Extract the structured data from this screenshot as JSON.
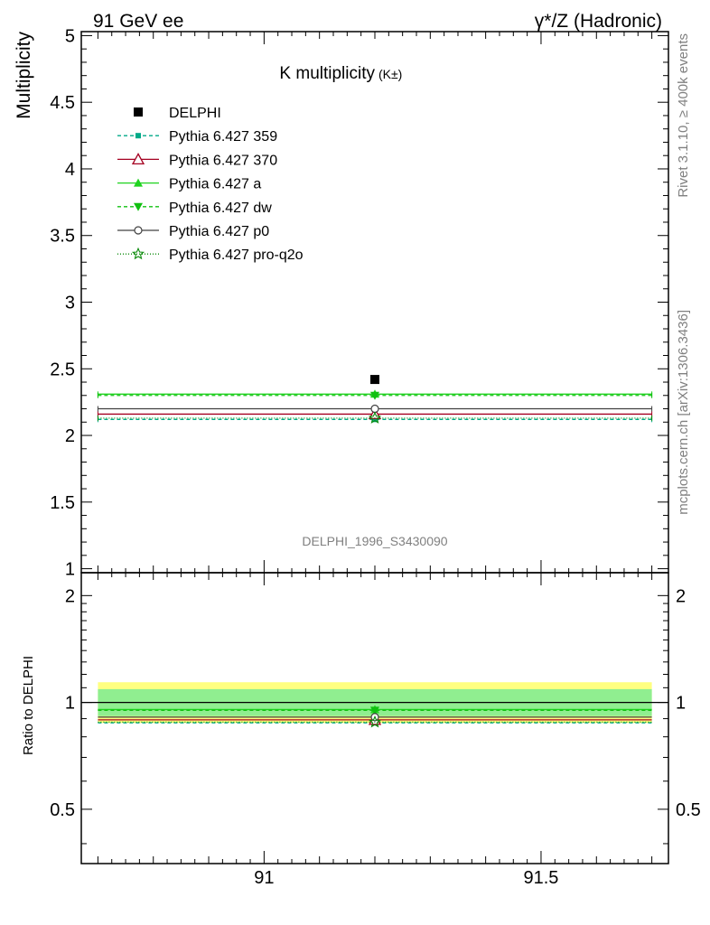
{
  "header": {
    "left": "91 GeV ee",
    "right": "γ*/Z (Hadronic)"
  },
  "side_text": {
    "rivet": "Rivet 3.1.10, ≥ 400k events",
    "mcplots": "mcplots.cern.ch [arXiv:1306.3436]"
  },
  "watermark": "DELPHI_1996_S3430090",
  "chart_data": [
    {
      "type": "line",
      "panel": "main",
      "title_main": "K multiplicity",
      "title_sub": "(K±)",
      "ylabel": "Multiplicity",
      "xlim": [
        90.67,
        91.73
      ],
      "ylim": [
        0.97,
        5.03
      ],
      "yticks": [
        1,
        1.5,
        2,
        2.5,
        3,
        3.5,
        4,
        4.5,
        5
      ],
      "ytick_labels": [
        "1",
        "1.5",
        "2",
        "2.5",
        "3",
        "3.5",
        "4",
        "4.5",
        "5"
      ],
      "data": {
        "name": "DELPHI",
        "x": 91.2,
        "y": 2.42,
        "color": "#000000",
        "marker": "square"
      },
      "series": [
        {
          "name": "Pythia 6.427 359",
          "x": [
            90.7,
            91.7
          ],
          "y": [
            2.12,
            2.12
          ],
          "x_mark": 91.2,
          "y_mark": 2.12,
          "color": "#00aa88",
          "dash": "4,3",
          "marker": "square-small"
        },
        {
          "name": "Pythia 6.427 370",
          "x": [
            90.7,
            91.7
          ],
          "y": [
            2.16,
            2.16
          ],
          "x_mark": 91.2,
          "y_mark": 2.16,
          "color": "#a50021",
          "dash": "",
          "marker": "triangle-open"
        },
        {
          "name": "Pythia 6.427 a",
          "x": [
            90.7,
            91.7
          ],
          "y": [
            2.31,
            2.31
          ],
          "x_mark": 91.2,
          "y_mark": 2.31,
          "color": "#1fd31f",
          "dash": "",
          "marker": "triangle-filled"
        },
        {
          "name": "Pythia 6.427 dw",
          "x": [
            90.7,
            91.7
          ],
          "y": [
            2.3,
            2.3
          ],
          "x_mark": 91.2,
          "y_mark": 2.3,
          "color": "#10c010",
          "dash": "4,3",
          "marker": "triangle-down"
        },
        {
          "name": "Pythia 6.427 p0",
          "x": [
            90.7,
            91.7
          ],
          "y": [
            2.2,
            2.2
          ],
          "x_mark": 91.2,
          "y_mark": 2.2,
          "color": "#404040",
          "dash": "",
          "marker": "circle-open"
        },
        {
          "name": "Pythia 6.427 pro-q2o",
          "x": [
            90.7,
            91.7
          ],
          "y": [
            2.13,
            2.13
          ],
          "x_mark": 91.2,
          "y_mark": 2.13,
          "color": "#0a8a0a",
          "dash": "1,2",
          "marker": "star-open"
        }
      ],
      "legend_placement": "top-left"
    },
    {
      "type": "line",
      "panel": "ratio",
      "ylabel": "Ratio to DELPHI",
      "xlim": [
        90.67,
        91.73
      ],
      "ylim": [
        0.3515,
        2.32
      ],
      "ylog": true,
      "yticks": [
        0.5,
        1,
        2
      ],
      "ytick_labels": [
        "0.5",
        "1",
        "2"
      ],
      "xticks": [
        91,
        91.5
      ],
      "xtick_labels": [
        "91",
        "91.5"
      ],
      "bands": [
        {
          "low": 0.875,
          "high": 1.14,
          "color": "#ffff80"
        },
        {
          "low": 0.915,
          "high": 1.09,
          "color": "#90ee90"
        }
      ],
      "series": [
        {
          "name": "Pythia 6.427 359",
          "y": 0.876,
          "color": "#00aa88",
          "dash": "4,3"
        },
        {
          "name": "Pythia 6.427 370",
          "y": 0.893,
          "color": "#a50021",
          "dash": ""
        },
        {
          "name": "Pythia 6.427 a",
          "y": 0.955,
          "color": "#1fd31f",
          "dash": ""
        },
        {
          "name": "Pythia 6.427 dw",
          "y": 0.95,
          "color": "#10c010",
          "dash": "4,3"
        },
        {
          "name": "Pythia 6.427 p0",
          "y": 0.909,
          "color": "#404040",
          "dash": ""
        },
        {
          "name": "Pythia 6.427 pro-q2o",
          "y": 0.88,
          "color": "#0a8a0a",
          "dash": "1,2"
        }
      ]
    }
  ]
}
